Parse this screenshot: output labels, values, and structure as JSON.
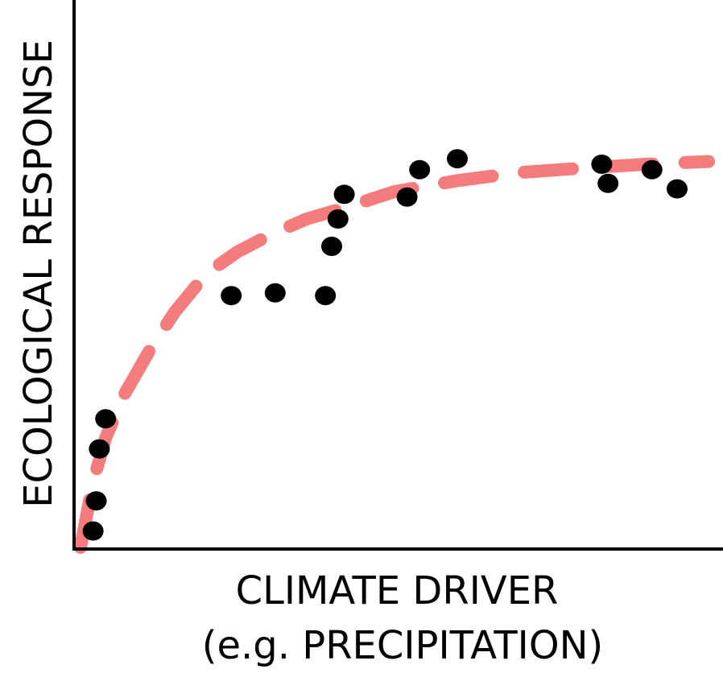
{
  "chart_data": {
    "type": "scatter",
    "title": "",
    "xlabel": "CLIMATE DRIVER",
    "xlabel_line2": "(e.g. PRECIPITATION)",
    "ylabel": "ECOLOGICAL RESPONSE",
    "ticks_shown": false,
    "grid": false,
    "series": [
      {
        "kind": "points",
        "color": "#000000",
        "x": [
          2,
          2.5,
          3,
          4,
          24,
          31,
          39,
          40,
          41,
          42,
          52,
          54,
          60,
          83,
          84,
          91,
          95
        ],
        "y": [
          3,
          8.5,
          18,
          23.5,
          46,
          46.5,
          46,
          55,
          60,
          64.5,
          64,
          69,
          71,
          70,
          66.5,
          69,
          65.5
        ]
      },
      {
        "kind": "trend",
        "style": "dashed",
        "color": "#f47c7c",
        "x": [
          0,
          2,
          4,
          7,
          11,
          15,
          20,
          25,
          30,
          36,
          42,
          50,
          60,
          70,
          80,
          90,
          100
        ],
        "y": [
          0,
          12,
          20,
          28,
          36,
          43,
          50,
          54,
          57,
          60,
          62,
          65,
          67,
          68.5,
          69.3,
          70,
          70.5
        ]
      }
    ]
  }
}
